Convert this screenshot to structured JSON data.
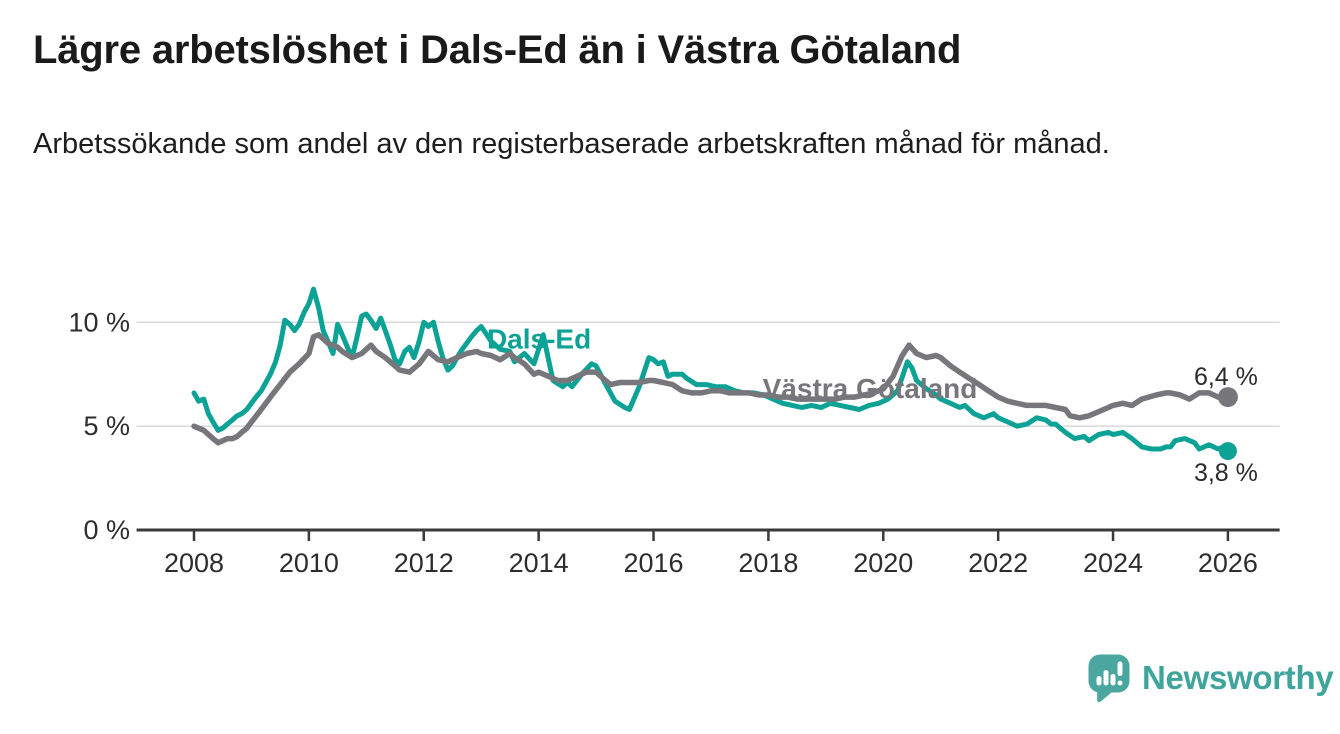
{
  "header": {
    "title": "Lägre arbetslöshet i Dals-Ed än i Västra Götaland",
    "subtitle": "Arbetssökande som andel av den registerbaserade arbetskraften månad för månad."
  },
  "branding": {
    "name": "Newsworthy",
    "logo_icon": "speech-bubble-bar-chart",
    "logo_color": "#3fa49b"
  },
  "colors": {
    "dals_ed": "#0ca295",
    "vastra_gotaland": "#77767b",
    "axis": "#3a3a3a",
    "grid": "#dadada",
    "tick_text": "#2d2d2d",
    "value_text": "#2b2b2b"
  },
  "chart_data": {
    "type": "line",
    "title": "Lägre arbetslöshet i Dals-Ed än i Västra Götaland",
    "subtitle": "Arbetssökande som andel av den registerbaserade arbetskraften månad för månad.",
    "unit": "%",
    "grid": true,
    "x_ticks": [
      2008,
      2010,
      2012,
      2014,
      2016,
      2018,
      2020,
      2022,
      2024,
      2026
    ],
    "x_axis_range": [
      2007.0,
      2026.9
    ],
    "y_ticks": [
      {
        "value": 0,
        "label": "0 %"
      },
      {
        "value": 5,
        "label": "5 %"
      },
      {
        "value": 10,
        "label": "10 %"
      }
    ],
    "y_range": [
      0,
      13.5
    ],
    "series": [
      {
        "name": "Dals-Ed",
        "color": "#0ca295",
        "stroke_width": 5,
        "dot_radius": 9,
        "end_label": "3,8 %",
        "end_value": 3.8,
        "end_label_offset": {
          "dx": -2,
          "dy": 30
        },
        "label_anchor": {
          "year": 2013.1,
          "value": 8.75
        },
        "points": [
          [
            2008,
            6.6
          ],
          [
            2008.08,
            6.2
          ],
          [
            2008.17,
            6.3
          ],
          [
            2008.25,
            5.6
          ],
          [
            2008.33,
            5.2
          ],
          [
            2008.42,
            4.8
          ],
          [
            2008.5,
            4.9
          ],
          [
            2008.58,
            5.1
          ],
          [
            2008.67,
            5.3
          ],
          [
            2008.75,
            5.5
          ],
          [
            2008.83,
            5.6
          ],
          [
            2008.92,
            5.8
          ],
          [
            2009,
            6.1
          ],
          [
            2009.08,
            6.4
          ],
          [
            2009.17,
            6.7
          ],
          [
            2009.25,
            7.1
          ],
          [
            2009.33,
            7.5
          ],
          [
            2009.42,
            8.1
          ],
          [
            2009.5,
            8.9
          ],
          [
            2009.58,
            10.1
          ],
          [
            2009.67,
            9.9
          ],
          [
            2009.75,
            9.6
          ],
          [
            2009.83,
            9.9
          ],
          [
            2009.92,
            10.5
          ],
          [
            2010,
            10.9
          ],
          [
            2010.08,
            11.6
          ],
          [
            2010.17,
            10.7
          ],
          [
            2010.25,
            9.6
          ],
          [
            2010.33,
            9.1
          ],
          [
            2010.42,
            8.5
          ],
          [
            2010.5,
            9.9
          ],
          [
            2010.58,
            9.4
          ],
          [
            2010.67,
            8.8
          ],
          [
            2010.75,
            8.3
          ],
          [
            2010.83,
            9.2
          ],
          [
            2010.92,
            10.3
          ],
          [
            2011,
            10.4
          ],
          [
            2011.08,
            10.1
          ],
          [
            2011.17,
            9.7
          ],
          [
            2011.25,
            10.2
          ],
          [
            2011.33,
            9.6
          ],
          [
            2011.42,
            8.9
          ],
          [
            2011.5,
            8.2
          ],
          [
            2011.58,
            8.0
          ],
          [
            2011.67,
            8.6
          ],
          [
            2011.75,
            8.8
          ],
          [
            2011.83,
            8.3
          ],
          [
            2011.92,
            9.1
          ],
          [
            2012,
            10.0
          ],
          [
            2012.08,
            9.8
          ],
          [
            2012.17,
            10.0
          ],
          [
            2012.25,
            9.1
          ],
          [
            2012.33,
            8.3
          ],
          [
            2012.42,
            7.7
          ],
          [
            2012.5,
            7.9
          ],
          [
            2012.58,
            8.3
          ],
          [
            2012.67,
            8.7
          ],
          [
            2012.75,
            9.0
          ],
          [
            2012.83,
            9.3
          ],
          [
            2012.92,
            9.6
          ],
          [
            2013,
            9.8
          ],
          [
            2013.17,
            9.1
          ],
          [
            2013.33,
            8.7
          ],
          [
            2013.5,
            8.6
          ],
          [
            2013.58,
            8.1
          ],
          [
            2013.75,
            8.5
          ],
          [
            2013.92,
            8.0
          ],
          [
            2014.08,
            9.4
          ],
          [
            2014.25,
            7.2
          ],
          [
            2014.42,
            6.9
          ],
          [
            2014.5,
            7.1
          ],
          [
            2014.58,
            6.9
          ],
          [
            2014.75,
            7.5
          ],
          [
            2014.92,
            8.0
          ],
          [
            2015,
            7.9
          ],
          [
            2015.17,
            7.0
          ],
          [
            2015.33,
            6.2
          ],
          [
            2015.5,
            5.9
          ],
          [
            2015.58,
            5.8
          ],
          [
            2015.75,
            6.9
          ],
          [
            2015.92,
            8.3
          ],
          [
            2016,
            8.2
          ],
          [
            2016.08,
            8.0
          ],
          [
            2016.17,
            8.1
          ],
          [
            2016.25,
            7.4
          ],
          [
            2016.33,
            7.5
          ],
          [
            2016.5,
            7.5
          ],
          [
            2016.58,
            7.3
          ],
          [
            2016.75,
            7.0
          ],
          [
            2016.92,
            7.0
          ],
          [
            2017.08,
            6.9
          ],
          [
            2017.25,
            6.9
          ],
          [
            2017.42,
            6.7
          ],
          [
            2017.58,
            6.6
          ],
          [
            2017.75,
            6.6
          ],
          [
            2017.92,
            6.5
          ],
          [
            2018.08,
            6.3
          ],
          [
            2018.25,
            6.1
          ],
          [
            2018.42,
            6.0
          ],
          [
            2018.58,
            5.9
          ],
          [
            2018.75,
            6.0
          ],
          [
            2018.92,
            5.9
          ],
          [
            2019.08,
            6.1
          ],
          [
            2019.25,
            6.0
          ],
          [
            2019.42,
            5.9
          ],
          [
            2019.58,
            5.8
          ],
          [
            2019.75,
            6.0
          ],
          [
            2019.92,
            6.1
          ],
          [
            2020.08,
            6.3
          ],
          [
            2020.25,
            6.7
          ],
          [
            2020.42,
            8.1
          ],
          [
            2020.5,
            7.8
          ],
          [
            2020.58,
            7.2
          ],
          [
            2020.75,
            6.8
          ],
          [
            2020.92,
            6.5
          ],
          [
            2021,
            6.3
          ],
          [
            2021.17,
            6.1
          ],
          [
            2021.33,
            5.9
          ],
          [
            2021.42,
            6.0
          ],
          [
            2021.58,
            5.6
          ],
          [
            2021.75,
            5.4
          ],
          [
            2021.92,
            5.6
          ],
          [
            2022,
            5.4
          ],
          [
            2022.17,
            5.2
          ],
          [
            2022.33,
            5.0
          ],
          [
            2022.5,
            5.1
          ],
          [
            2022.67,
            5.4
          ],
          [
            2022.83,
            5.3
          ],
          [
            2022.92,
            5.1
          ],
          [
            2023,
            5.1
          ],
          [
            2023.17,
            4.7
          ],
          [
            2023.33,
            4.4
          ],
          [
            2023.5,
            4.5
          ],
          [
            2023.58,
            4.3
          ],
          [
            2023.75,
            4.6
          ],
          [
            2023.92,
            4.7
          ],
          [
            2024,
            4.6
          ],
          [
            2024.17,
            4.7
          ],
          [
            2024.33,
            4.4
          ],
          [
            2024.5,
            4.0
          ],
          [
            2024.67,
            3.9
          ],
          [
            2024.83,
            3.9
          ],
          [
            2024.92,
            4.0
          ],
          [
            2025,
            4.0
          ],
          [
            2025.08,
            4.3
          ],
          [
            2025.25,
            4.4
          ],
          [
            2025.42,
            4.2
          ],
          [
            2025.5,
            3.9
          ],
          [
            2025.67,
            4.1
          ],
          [
            2025.83,
            3.9
          ],
          [
            2025.92,
            4.0
          ],
          [
            2026,
            3.8
          ]
        ]
      },
      {
        "name": "Västra Götaland",
        "color": "#77767b",
        "stroke_width": 5.5,
        "dot_radius": 10,
        "end_label": "6,4 %",
        "end_value": 6.4,
        "end_label_offset": {
          "dx": -2,
          "dy": -12
        },
        "label_anchor": {
          "year": 2017.9,
          "value": 6.35
        },
        "points": [
          [
            2008,
            5.0
          ],
          [
            2008.08,
            4.9
          ],
          [
            2008.17,
            4.8
          ],
          [
            2008.25,
            4.6
          ],
          [
            2008.33,
            4.4
          ],
          [
            2008.42,
            4.2
          ],
          [
            2008.5,
            4.3
          ],
          [
            2008.58,
            4.4
          ],
          [
            2008.67,
            4.4
          ],
          [
            2008.75,
            4.5
          ],
          [
            2008.83,
            4.7
          ],
          [
            2008.92,
            4.9
          ],
          [
            2009,
            5.2
          ],
          [
            2009.17,
            5.8
          ],
          [
            2009.33,
            6.4
          ],
          [
            2009.5,
            7.0
          ],
          [
            2009.67,
            7.6
          ],
          [
            2009.83,
            8.0
          ],
          [
            2010,
            8.5
          ],
          [
            2010.08,
            9.3
          ],
          [
            2010.17,
            9.4
          ],
          [
            2010.25,
            9.2
          ],
          [
            2010.33,
            9.0
          ],
          [
            2010.5,
            8.8
          ],
          [
            2010.58,
            8.6
          ],
          [
            2010.75,
            8.3
          ],
          [
            2010.92,
            8.5
          ],
          [
            2011,
            8.7
          ],
          [
            2011.08,
            8.9
          ],
          [
            2011.17,
            8.6
          ],
          [
            2011.33,
            8.3
          ],
          [
            2011.5,
            7.9
          ],
          [
            2011.58,
            7.7
          ],
          [
            2011.75,
            7.6
          ],
          [
            2011.92,
            8.0
          ],
          [
            2012,
            8.3
          ],
          [
            2012.08,
            8.6
          ],
          [
            2012.25,
            8.2
          ],
          [
            2012.42,
            8.1
          ],
          [
            2012.58,
            8.3
          ],
          [
            2012.75,
            8.5
          ],
          [
            2012.92,
            8.6
          ],
          [
            2013,
            8.5
          ],
          [
            2013.17,
            8.4
          ],
          [
            2013.33,
            8.2
          ],
          [
            2013.5,
            8.5
          ],
          [
            2013.58,
            8.3
          ],
          [
            2013.75,
            8.0
          ],
          [
            2013.92,
            7.5
          ],
          [
            2014,
            7.6
          ],
          [
            2014.17,
            7.4
          ],
          [
            2014.33,
            7.2
          ],
          [
            2014.5,
            7.2
          ],
          [
            2014.67,
            7.4
          ],
          [
            2014.83,
            7.6
          ],
          [
            2015,
            7.6
          ],
          [
            2015.08,
            7.4
          ],
          [
            2015.25,
            7.0
          ],
          [
            2015.42,
            7.1
          ],
          [
            2015.58,
            7.1
          ],
          [
            2015.75,
            7.1
          ],
          [
            2015.92,
            7.2
          ],
          [
            2016,
            7.2
          ],
          [
            2016.17,
            7.1
          ],
          [
            2016.33,
            7.0
          ],
          [
            2016.5,
            6.7
          ],
          [
            2016.67,
            6.6
          ],
          [
            2016.83,
            6.6
          ],
          [
            2017,
            6.7
          ],
          [
            2017.17,
            6.7
          ],
          [
            2017.33,
            6.6
          ],
          [
            2017.5,
            6.6
          ],
          [
            2017.67,
            6.6
          ],
          [
            2017.83,
            6.5
          ],
          [
            2018,
            6.5
          ],
          [
            2018.17,
            6.4
          ],
          [
            2018.33,
            6.4
          ],
          [
            2018.5,
            6.3
          ],
          [
            2018.67,
            6.3
          ],
          [
            2018.83,
            6.3
          ],
          [
            2019,
            6.3
          ],
          [
            2019.17,
            6.3
          ],
          [
            2019.33,
            6.4
          ],
          [
            2019.5,
            6.4
          ],
          [
            2019.67,
            6.5
          ],
          [
            2019.83,
            6.6
          ],
          [
            2020,
            6.8
          ],
          [
            2020.17,
            7.4
          ],
          [
            2020.33,
            8.4
          ],
          [
            2020.45,
            8.9
          ],
          [
            2020.58,
            8.5
          ],
          [
            2020.75,
            8.3
          ],
          [
            2020.92,
            8.4
          ],
          [
            2021,
            8.3
          ],
          [
            2021.17,
            7.9
          ],
          [
            2021.33,
            7.6
          ],
          [
            2021.5,
            7.3
          ],
          [
            2021.67,
            7.0
          ],
          [
            2021.83,
            6.7
          ],
          [
            2022,
            6.4
          ],
          [
            2022.17,
            6.2
          ],
          [
            2022.33,
            6.1
          ],
          [
            2022.5,
            6.0
          ],
          [
            2022.67,
            6.0
          ],
          [
            2022.83,
            6.0
          ],
          [
            2023,
            5.9
          ],
          [
            2023.17,
            5.8
          ],
          [
            2023.25,
            5.5
          ],
          [
            2023.42,
            5.4
          ],
          [
            2023.58,
            5.5
          ],
          [
            2023.75,
            5.7
          ],
          [
            2023.92,
            5.9
          ],
          [
            2024,
            6.0
          ],
          [
            2024.17,
            6.1
          ],
          [
            2024.33,
            6.0
          ],
          [
            2024.5,
            6.3
          ],
          [
            2024.75,
            6.5
          ],
          [
            2024.92,
            6.6
          ],
          [
            2025,
            6.6
          ],
          [
            2025.17,
            6.5
          ],
          [
            2025.33,
            6.3
          ],
          [
            2025.5,
            6.6
          ],
          [
            2025.67,
            6.6
          ],
          [
            2025.83,
            6.4
          ],
          [
            2025.92,
            6.5
          ],
          [
            2026,
            6.4
          ]
        ]
      }
    ]
  }
}
